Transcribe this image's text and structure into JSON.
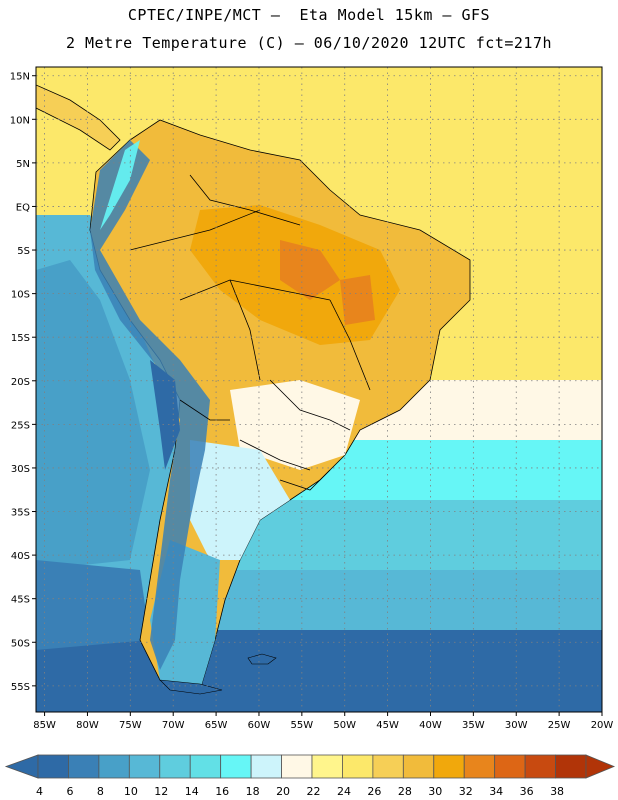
{
  "header": {
    "line1": "CPTEC/INPE/MCT –  Eta Model 15km – GFS",
    "line2": "2 Metre Temperature (C) – 06/10/2020 12UTC fct=217h"
  },
  "map": {
    "lat_labels": [
      "15N",
      "10N",
      "5N",
      "EQ",
      "5S",
      "10S",
      "15S",
      "20S",
      "25S",
      "30S",
      "35S",
      "40S",
      "45S",
      "50S",
      "55S"
    ],
    "lon_labels": [
      "85W",
      "80W",
      "75W",
      "70W",
      "65W",
      "60W",
      "55W",
      "50W",
      "45W",
      "40W",
      "35W",
      "30W",
      "25W",
      "20W"
    ],
    "lat_range": [
      -58,
      16
    ],
    "lon_range": [
      -86,
      -20
    ]
  },
  "colorbar": {
    "ticks": [
      "4",
      "6",
      "8",
      "10",
      "12",
      "14",
      "16",
      "18",
      "20",
      "22",
      "24",
      "26",
      "28",
      "30",
      "32",
      "34",
      "36",
      "38"
    ],
    "colors": [
      "#2e6aa6",
      "#3a80b6",
      "#48a0c8",
      "#57b8d6",
      "#5fcdde",
      "#62e0e6",
      "#66f6f6",
      "#cdf4fb",
      "#fff8e6",
      "#fff58c",
      "#fce86a",
      "#f6cf56",
      "#f1bb3b",
      "#f1a80c",
      "#e8851c",
      "#dd6615",
      "#c84a10",
      "#b13408"
    ]
  }
}
